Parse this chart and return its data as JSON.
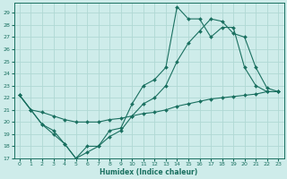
{
  "xlabel": "Humidex (Indice chaleur)",
  "background_color": "#ceecea",
  "grid_color": "#b0d8d4",
  "line_color": "#1a7060",
  "xlim": [
    -0.5,
    23.5
  ],
  "ylim": [
    17,
    29.8
  ],
  "yticks": [
    17,
    18,
    19,
    20,
    21,
    22,
    23,
    24,
    25,
    26,
    27,
    28,
    29
  ],
  "xticks": [
    0,
    1,
    2,
    3,
    4,
    5,
    6,
    7,
    8,
    9,
    10,
    11,
    12,
    13,
    14,
    15,
    16,
    17,
    18,
    19,
    20,
    21,
    22,
    23
  ],
  "line1_x": [
    0,
    1,
    2,
    3,
    4,
    5,
    6,
    7,
    8,
    9,
    10,
    11,
    12,
    13,
    14,
    15,
    16,
    17,
    18,
    19,
    20,
    21,
    22,
    23
  ],
  "line1_y": [
    22.2,
    21.0,
    19.8,
    19.3,
    18.2,
    17.0,
    18.0,
    18.0,
    19.3,
    19.5,
    21.5,
    23.0,
    23.5,
    24.5,
    29.5,
    28.5,
    28.5,
    27.0,
    27.8,
    27.8,
    24.5,
    23.0,
    22.5,
    22.5
  ],
  "line2_x": [
    0,
    1,
    2,
    3,
    4,
    5,
    6,
    7,
    8,
    9,
    10,
    11,
    12,
    13,
    14,
    15,
    16,
    17,
    18,
    19,
    20,
    21,
    22,
    23
  ],
  "line2_y": [
    22.2,
    21.0,
    19.8,
    19.0,
    18.2,
    17.0,
    17.5,
    18.0,
    18.8,
    19.3,
    20.5,
    21.5,
    22.0,
    23.0,
    25.0,
    26.5,
    27.5,
    28.5,
    28.3,
    27.3,
    27.0,
    24.5,
    22.8,
    22.5
  ],
  "line3_x": [
    0,
    1,
    2,
    3,
    4,
    5,
    6,
    7,
    8,
    9,
    10,
    11,
    12,
    13,
    14,
    15,
    16,
    17,
    18,
    19,
    20,
    21,
    22,
    23
  ],
  "line3_y": [
    22.2,
    21.0,
    20.8,
    20.5,
    20.2,
    20.0,
    20.0,
    20.0,
    20.2,
    20.3,
    20.5,
    20.7,
    20.8,
    21.0,
    21.3,
    21.5,
    21.7,
    21.9,
    22.0,
    22.1,
    22.2,
    22.3,
    22.5,
    22.5
  ]
}
